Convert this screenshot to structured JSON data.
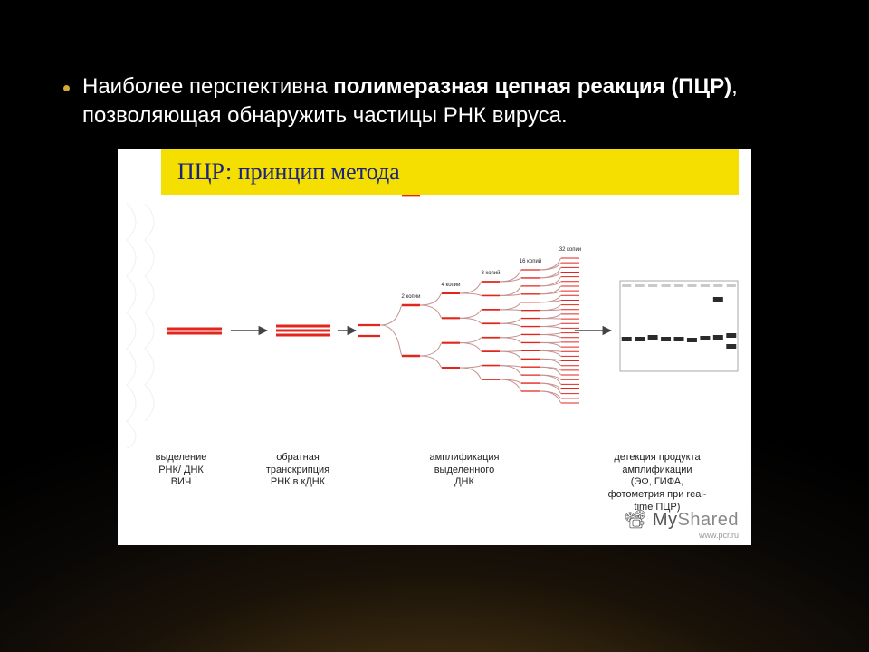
{
  "bullet": {
    "prefix": "Наиболее перспективна ",
    "bold": "полимеразная цепная реакция (ПЦР)",
    "suffix": ", позволяющая обнаружить частицы РНК вируса."
  },
  "figure": {
    "title": "ПЦР: принцип метода",
    "title_bg": "#f5df00",
    "title_color": "#1a237e",
    "background": "#ffffff",
    "strand_color": "#e2261d",
    "branch_color": "#c79090",
    "arrow_color": "#444444",
    "gel_border": "#aaaaaa",
    "band_color": "#2b2b2b",
    "copy_labels": [
      "2 копии",
      "4 копии",
      "8 копий",
      "16 копий",
      "32 копии"
    ],
    "steps": [
      "выделение\nРНК/ ДНК\nВИЧ",
      "обратная\nтранскрипция\nРНК в кДНК",
      "амплификация\nвыделенного\nДНК",
      "детекция продукта\nамплификации\n(ЭФ, ГИФА,\nфотометрия при real-\ntime ПЦР)"
    ],
    "gel": {
      "lanes": 9,
      "bands": [
        {
          "lane": 0,
          "y": 0.62,
          "w": 1.0
        },
        {
          "lane": 1,
          "y": 0.62,
          "w": 1.0
        },
        {
          "lane": 2,
          "y": 0.6,
          "w": 1.0
        },
        {
          "lane": 3,
          "y": 0.62,
          "w": 1.0
        },
        {
          "lane": 4,
          "y": 0.62,
          "w": 1.0
        },
        {
          "lane": 5,
          "y": 0.63,
          "w": 1.0
        },
        {
          "lane": 6,
          "y": 0.61,
          "w": 1.0
        },
        {
          "lane": 7,
          "y": 0.18,
          "w": 1.0
        },
        {
          "lane": 7,
          "y": 0.6,
          "w": 1.0
        },
        {
          "lane": 8,
          "y": 0.58,
          "w": 1.0
        },
        {
          "lane": 8,
          "y": 0.7,
          "w": 1.0
        }
      ]
    }
  },
  "watermark": {
    "logo_my": "My",
    "logo_shared": "Shared",
    "url": "www.pcr.ru"
  },
  "colors": {
    "bullet_dot": "#d4a939"
  }
}
